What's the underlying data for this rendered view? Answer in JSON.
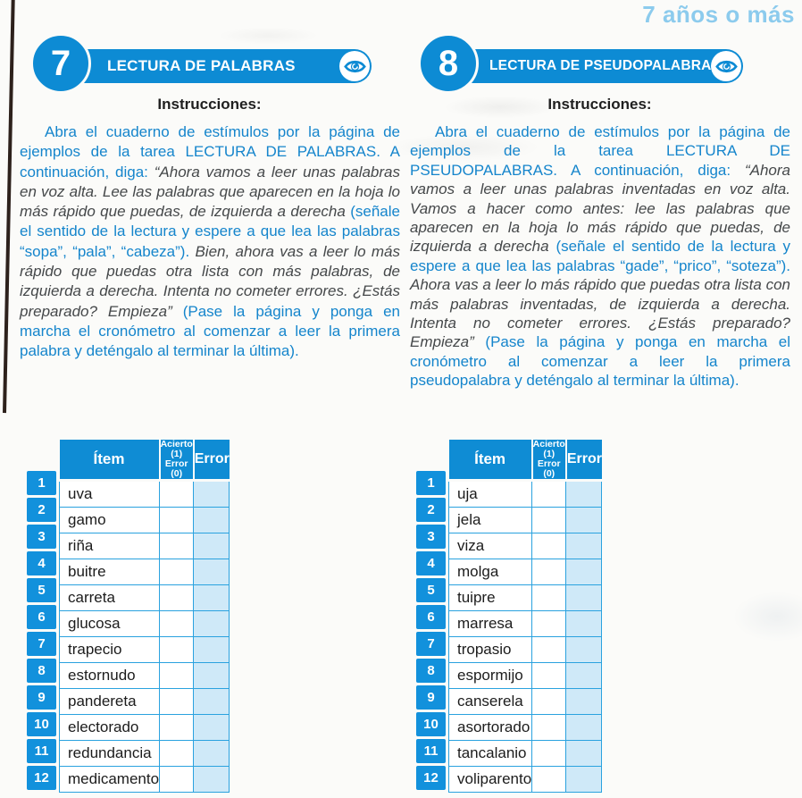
{
  "page": {
    "age_label": "7 años o más"
  },
  "colors": {
    "accent_blue": "#0d8bd4",
    "number_cell_blue": "#1291dc",
    "table_border_blue": "#2aa2df",
    "error_cell_fill": "#cfe9f8",
    "instruction_text_blue": "#1585cc",
    "speech_text_gray": "#45484a",
    "age_label_light_blue": "#8ccbed",
    "scan_edge_dark": "#2d211c"
  },
  "tasks": [
    {
      "number": "7",
      "title": "LECTURA DE PALABRAS",
      "instructions_heading": "Instrucciones:",
      "instructions": [
        {
          "style": "blue",
          "text": "Abra el cuaderno de estímulos por la página de ejemplos de la tarea LECTURA DE PALABRAS. A continuación, diga: "
        },
        {
          "style": "italic",
          "text": "“Ahora vamos a leer unas palabras en voz alta. Lee las palabras que aparecen en la hoja lo más rápido que puedas, de izquierda a derecha "
        },
        {
          "style": "blue",
          "text": "(señale el sentido de la lectura y espere a que lea las palabras “sopa”, “pala”, “cabeza”). "
        },
        {
          "style": "italic",
          "text": "Bien, ahora vas a leer lo más rápido que puedas otra lista con más palabras, de izquierda a derecha. Intenta no cometer errores. ¿Estás preparado? Empieza” "
        },
        {
          "style": "blue",
          "text": "(Pase la página y ponga en marcha el cronómetro al comenzar a leer la primera palabra y deténgalo al terminar la última)."
        }
      ],
      "table": {
        "item_header": "Ítem",
        "score_header_line1": "Acierto (1)",
        "score_header_line2": "Error (0)",
        "error_header": "Error",
        "rows": [
          {
            "num": "1",
            "item": "uva",
            "score": "",
            "error": ""
          },
          {
            "num": "2",
            "item": "gamo",
            "score": "",
            "error": ""
          },
          {
            "num": "3",
            "item": "riña",
            "score": "",
            "error": ""
          },
          {
            "num": "4",
            "item": "buitre",
            "score": "",
            "error": ""
          },
          {
            "num": "5",
            "item": "carreta",
            "score": "",
            "error": ""
          },
          {
            "num": "6",
            "item": "glucosa",
            "score": "",
            "error": ""
          },
          {
            "num": "7",
            "item": "trapecio",
            "score": "",
            "error": ""
          },
          {
            "num": "8",
            "item": "estornudo",
            "score": "",
            "error": ""
          },
          {
            "num": "9",
            "item": "pandereta",
            "score": "",
            "error": ""
          },
          {
            "num": "10",
            "item": "electorado",
            "score": "",
            "error": ""
          },
          {
            "num": "11",
            "item": "redundancia",
            "score": "",
            "error": ""
          },
          {
            "num": "12",
            "item": "medicamento",
            "score": "",
            "error": ""
          }
        ]
      }
    },
    {
      "number": "8",
      "title": "LECTURA DE PSEUDOPALABRAS",
      "instructions_heading": "Instrucciones:",
      "instructions": [
        {
          "style": "blue",
          "text": "Abra el cuaderno de estímulos por la página de ejemplos de la tarea LECTURA DE PSEUDOPALABRAS. A continuación, diga: "
        },
        {
          "style": "italic",
          "text": "“Ahora vamos a leer unas palabras inventadas en voz alta. Vamos a hacer como antes: lee las palabras que aparecen en la hoja lo más rápido que puedas, de izquierda a derecha "
        },
        {
          "style": "blue",
          "text": " (señale el sentido de la lectura y espere a que lea las palabras “gade”, “prico”, “soteza”). "
        },
        {
          "style": "italic",
          "text": "Ahora vas a leer lo más rápido que puedas otra lista con más palabras inventadas, de izquierda a derecha. Intenta no cometer errores. ¿Estás preparado? Empieza” "
        },
        {
          "style": "blue",
          "text": "(Pase la página y ponga en marcha el cronómetro al comenzar a leer la primera pseudopalabra y deténgalo al terminar la última)."
        }
      ],
      "table": {
        "item_header": "Ítem",
        "score_header_line1": "Acierto (1)",
        "score_header_line2": "Error (0)",
        "error_header": "Error",
        "rows": [
          {
            "num": "1",
            "item": "uja",
            "score": "",
            "error": ""
          },
          {
            "num": "2",
            "item": "jela",
            "score": "",
            "error": ""
          },
          {
            "num": "3",
            "item": "viza",
            "score": "",
            "error": ""
          },
          {
            "num": "4",
            "item": "molga",
            "score": "",
            "error": ""
          },
          {
            "num": "5",
            "item": "tuipre",
            "score": "",
            "error": ""
          },
          {
            "num": "6",
            "item": "marresa",
            "score": "",
            "error": ""
          },
          {
            "num": "7",
            "item": "tropasio",
            "score": "",
            "error": ""
          },
          {
            "num": "8",
            "item": "espormijo",
            "score": "",
            "error": ""
          },
          {
            "num": "9",
            "item": "canserela",
            "score": "",
            "error": ""
          },
          {
            "num": "10",
            "item": "asortorado",
            "score": "",
            "error": ""
          },
          {
            "num": "11",
            "item": "tancalanio",
            "score": "",
            "error": ""
          },
          {
            "num": "12",
            "item": "voliparento",
            "score": "",
            "error": ""
          }
        ]
      }
    }
  ]
}
